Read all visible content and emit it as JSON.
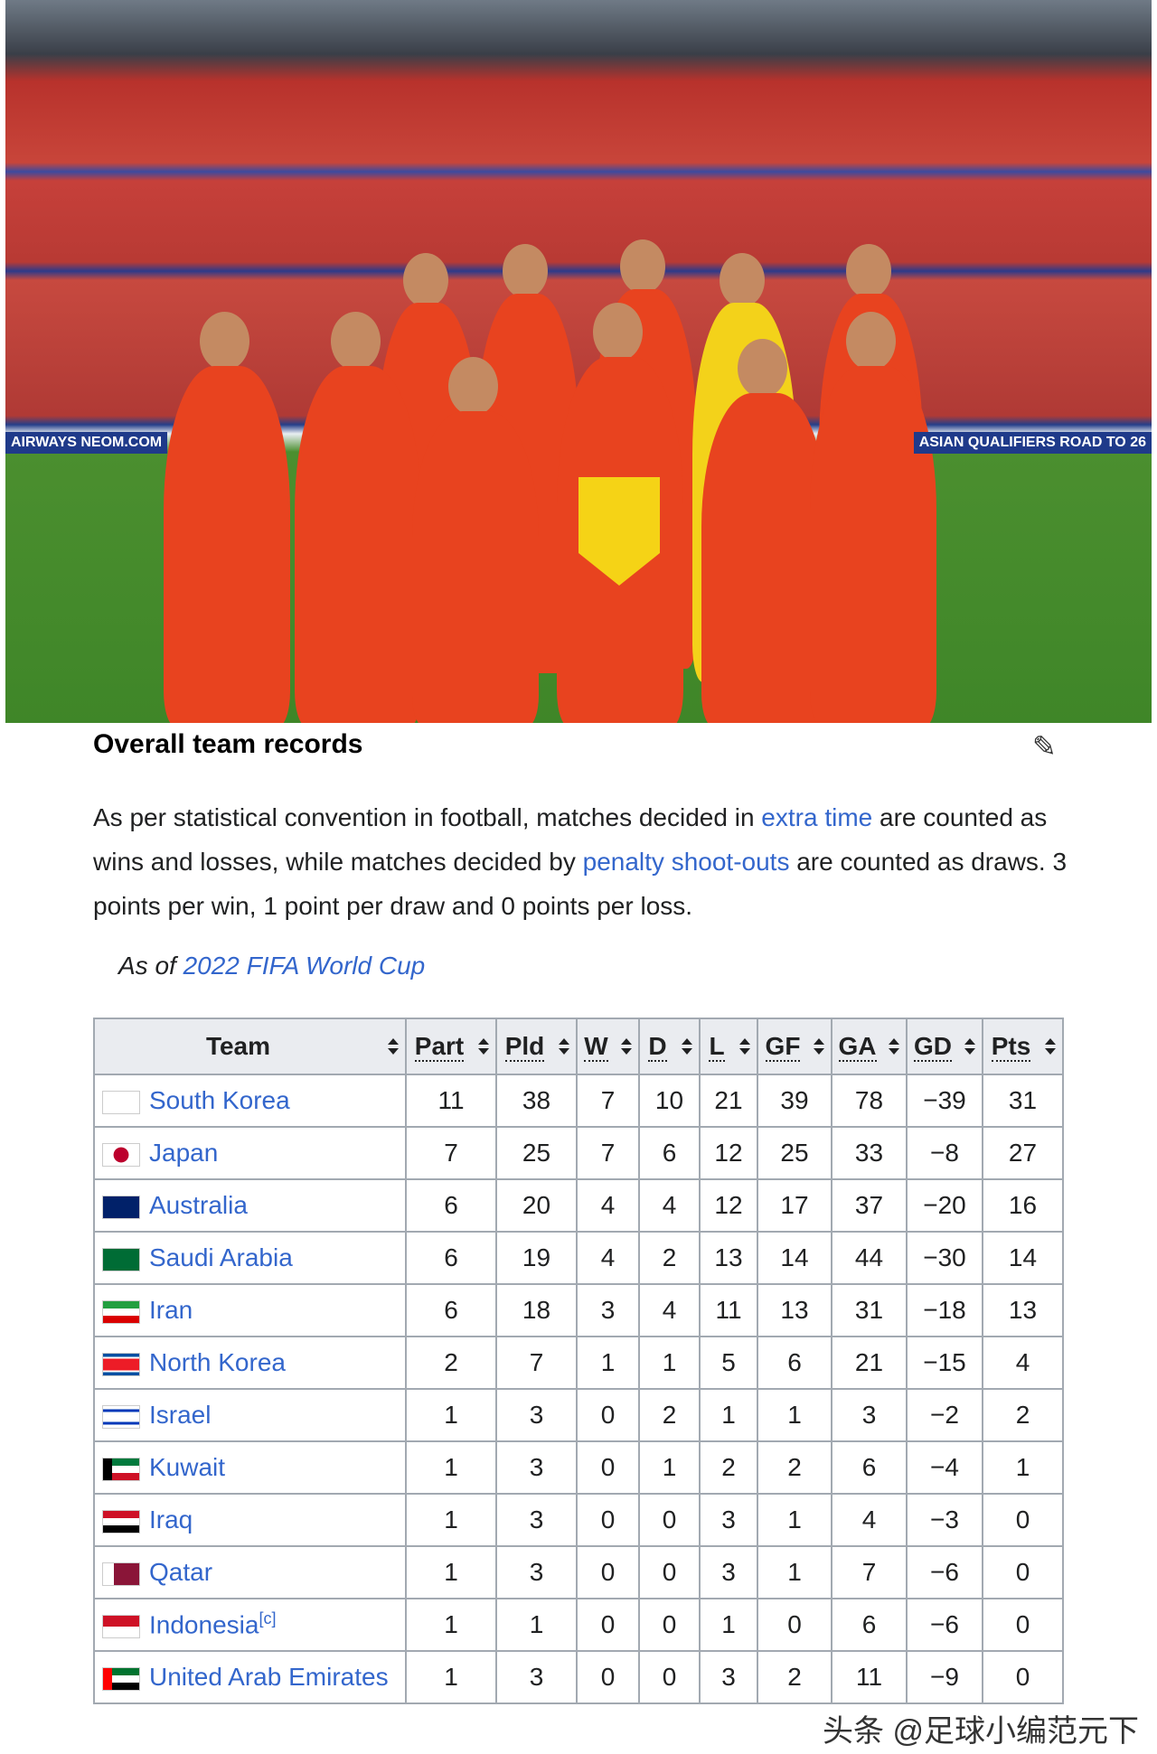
{
  "photo": {
    "adboard_left": "AIRWAYS NEOM.COM",
    "adboard_right": "ASIAN QUALIFIERS ROAD TO 26"
  },
  "section": {
    "title": "Overall team records",
    "edit_icon": "pencil-icon"
  },
  "intro": {
    "t1": "As per statistical convention in football, matches decided in ",
    "link1": "extra time",
    "t2": " are counted as wins and losses, while matches decided by ",
    "link2": "penalty shoot-outs",
    "t3": " are counted as draws. 3 points per win, 1 point per draw and 0 points per loss."
  },
  "asof": {
    "prefix": "As of ",
    "link": "2022 FIFA World Cup"
  },
  "table": {
    "headers": [
      "Team",
      "Part",
      "Pld",
      "W",
      "D",
      "L",
      "GF",
      "GA",
      "GD",
      "Pts"
    ],
    "rows": [
      {
        "team": "South Korea",
        "flag": "south-korea",
        "vals": [
          "11",
          "38",
          "7",
          "10",
          "21",
          "39",
          "78",
          "−39",
          "31"
        ]
      },
      {
        "team": "Japan",
        "flag": "japan",
        "vals": [
          "7",
          "25",
          "7",
          "6",
          "12",
          "25",
          "33",
          "−8",
          "27"
        ]
      },
      {
        "team": "Australia",
        "flag": "australia",
        "vals": [
          "6",
          "20",
          "4",
          "4",
          "12",
          "17",
          "37",
          "−20",
          "16"
        ]
      },
      {
        "team": "Saudi Arabia",
        "flag": "saudi-arabia",
        "vals": [
          "6",
          "19",
          "4",
          "2",
          "13",
          "14",
          "44",
          "−30",
          "14"
        ]
      },
      {
        "team": "Iran",
        "flag": "iran",
        "vals": [
          "6",
          "18",
          "3",
          "4",
          "11",
          "13",
          "31",
          "−18",
          "13"
        ]
      },
      {
        "team": "North Korea",
        "flag": "north-korea",
        "vals": [
          "2",
          "7",
          "1",
          "1",
          "5",
          "6",
          "21",
          "−15",
          "4"
        ]
      },
      {
        "team": "Israel",
        "flag": "israel",
        "vals": [
          "1",
          "3",
          "0",
          "2",
          "1",
          "1",
          "3",
          "−2",
          "2"
        ]
      },
      {
        "team": "Kuwait",
        "flag": "kuwait",
        "vals": [
          "1",
          "3",
          "0",
          "1",
          "2",
          "2",
          "6",
          "−4",
          "1"
        ]
      },
      {
        "team": "Iraq",
        "flag": "iraq",
        "vals": [
          "1",
          "3",
          "0",
          "0",
          "3",
          "1",
          "4",
          "−3",
          "0"
        ]
      },
      {
        "team": "Qatar",
        "flag": "qatar",
        "vals": [
          "1",
          "3",
          "0",
          "0",
          "3",
          "1",
          "7",
          "−6",
          "0"
        ]
      },
      {
        "team": "Indonesia",
        "note": "[c]",
        "flag": "indonesia",
        "vals": [
          "1",
          "1",
          "0",
          "0",
          "1",
          "0",
          "6",
          "−6",
          "0"
        ]
      },
      {
        "team": "United Arab Emirates",
        "flag": "uae",
        "vals": [
          "1",
          "3",
          "0",
          "0",
          "3",
          "2",
          "11",
          "−9",
          "0"
        ]
      }
    ]
  },
  "watermark": "头条 @足球小编范元下"
}
